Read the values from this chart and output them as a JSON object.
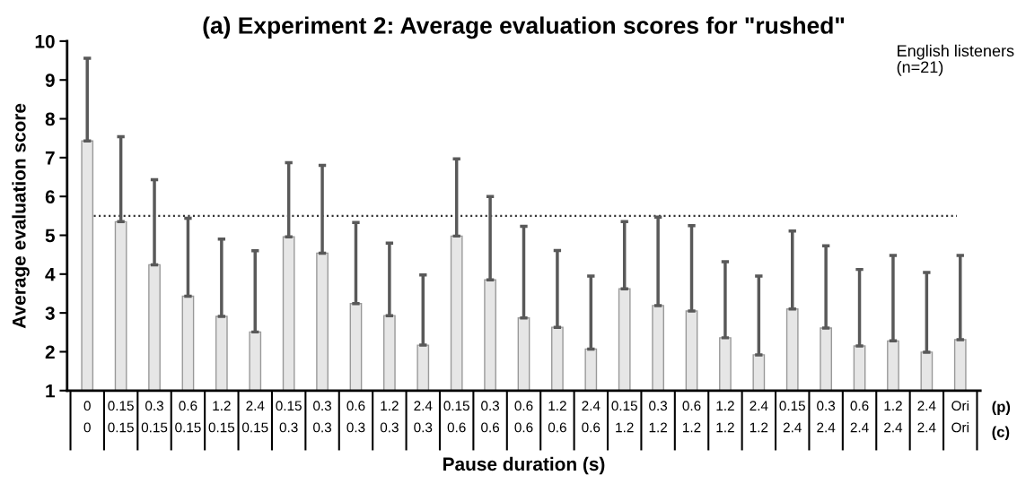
{
  "chart_data": {
    "type": "bar",
    "title": "(a) Experiment 2: Average evaluation scores for \"rushed\"",
    "xlabel": "Pause duration (s)",
    "ylabel": "Average evaluation score",
    "categories": [
      "0\n0",
      "0.15\n0.15",
      "0.3\n0.15",
      "0.6\n0.15",
      "1.2\n0.15",
      "2.4\n0.15",
      "0.15\n0.3",
      "0.3\n0.3",
      "0.6\n0.3",
      "1.2\n0.3",
      "2.4\n0.3",
      "0.15\n0.6",
      "0.3\n0.6",
      "0.6\n0.6",
      "1.2\n0.6",
      "2.4\n0.6",
      "0.15\n1.2",
      "0.3\n1.2",
      "0.6\n1.2",
      "1.2\n1.2",
      "2.4\n1.2",
      "0.15\n2.4",
      "0.3\n2.4",
      "0.6\n2.4",
      "1.2\n2.4",
      "2.4\n2.4",
      "Ori\nOri"
    ],
    "values": [
      7.43,
      5.35,
      4.24,
      3.43,
      2.91,
      2.51,
      4.96,
      4.54,
      3.24,
      2.93,
      2.17,
      4.98,
      3.85,
      2.87,
      2.63,
      2.07,
      3.62,
      3.19,
      3.05,
      2.36,
      1.92,
      3.1,
      2.61,
      2.15,
      2.28,
      1.99,
      2.31
    ],
    "errors": [
      [
        7.43,
        9.56
      ],
      [
        5.35,
        7.54
      ],
      [
        4.24,
        6.43
      ],
      [
        3.43,
        5.44
      ],
      [
        2.91,
        4.9
      ],
      [
        2.51,
        4.6
      ],
      [
        4.96,
        6.87
      ],
      [
        4.54,
        6.8
      ],
      [
        3.24,
        5.33
      ],
      [
        2.93,
        4.8
      ],
      [
        2.17,
        3.98
      ],
      [
        4.98,
        6.97
      ],
      [
        3.85,
        6.0
      ],
      [
        2.87,
        5.23
      ],
      [
        2.63,
        4.61
      ],
      [
        2.07,
        3.95
      ],
      [
        3.62,
        5.35
      ],
      [
        3.19,
        5.47
      ],
      [
        3.05,
        5.25
      ],
      [
        2.36,
        4.32
      ],
      [
        1.92,
        3.95
      ],
      [
        3.1,
        5.11
      ],
      [
        2.61,
        4.73
      ],
      [
        2.15,
        4.12
      ],
      [
        2.28,
        4.48
      ],
      [
        1.99,
        4.04
      ],
      [
        2.31,
        4.48
      ]
    ],
    "color": "#e6e6e6",
    "ylim": [
      1,
      10
    ],
    "yticks": [
      1,
      2,
      3,
      4,
      5,
      6,
      7,
      8,
      9,
      10
    ],
    "ref_lines": [
      {
        "axis": "y",
        "value": 5.5,
        "color": "#333333",
        "line_style": "dotted"
      }
    ],
    "annotations": [
      "English listeners\n(n=21)",
      "(p)",
      "(c)"
    ],
    "grid": false,
    "legend": false
  }
}
